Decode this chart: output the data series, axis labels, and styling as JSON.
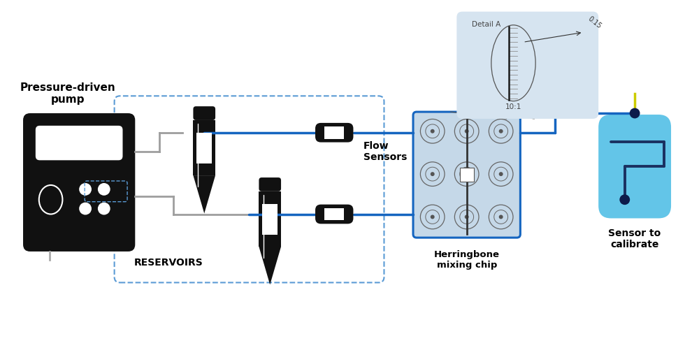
{
  "bg_color": "#ffffff",
  "blue_line": "#1565C0",
  "gray_line": "#9E9E9E",
  "dashed_blue": "#5B9BD5",
  "chip_bg": "#C5D8E8",
  "detail_bg": "#D6E4F0",
  "sensor_bg": "#63C5E8",
  "pump_bg": "#111111",
  "flow_sensor_color": "#111111",
  "yellow": "#CCCC00",
  "dark_dot": "#0D1B4B",
  "label_pump": "Pressure-driven\npump",
  "label_reservoirs": "RESERVOIRS",
  "label_flow": "Flow\nSensors",
  "label_chip": "Herringbone\nmixing chip",
  "label_sensor": "Sensor to\ncalibrate",
  "detail_title": "Detail A",
  "detail_scale": "10:1",
  "detail_dim": "0.15"
}
